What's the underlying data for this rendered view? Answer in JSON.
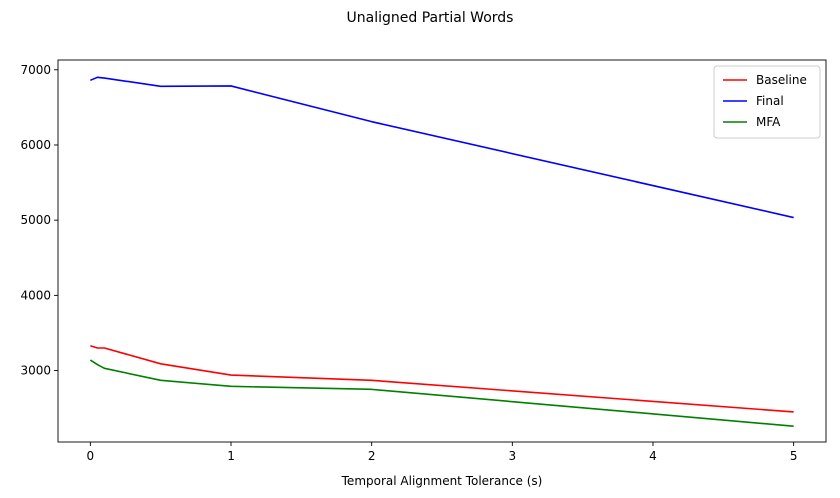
{
  "chart_data": {
    "type": "line",
    "title": "Unaligned Partial Words",
    "xlabel": "Temporal Alignment Tolerance (s)",
    "ylabel": "",
    "xlim": [
      -0.23,
      5.23
    ],
    "ylim": [
      2050,
      7130
    ],
    "x_ticks": [
      0,
      1,
      2,
      3,
      4,
      5
    ],
    "y_ticks": [
      3000,
      4000,
      5000,
      6000,
      7000
    ],
    "grid": false,
    "legend_position": "top-right",
    "series": [
      {
        "name": "Baseline",
        "color": "#ff0000",
        "x": [
          0,
          0.05,
          0.1,
          0.5,
          1,
          2,
          5
        ],
        "y": [
          3330,
          3300,
          3300,
          3090,
          2940,
          2870,
          2450
        ]
      },
      {
        "name": "Final",
        "color": "#0000ff",
        "x": [
          0,
          0.05,
          0.1,
          0.5,
          1,
          2,
          5
        ],
        "y": [
          6860,
          6900,
          6890,
          6780,
          6785,
          6310,
          5035
        ]
      },
      {
        "name": "MFA",
        "color": "#008000",
        "x": [
          0,
          0.05,
          0.1,
          0.5,
          1,
          2,
          5
        ],
        "y": [
          3140,
          3080,
          3030,
          2870,
          2790,
          2750,
          2260
        ]
      }
    ]
  }
}
